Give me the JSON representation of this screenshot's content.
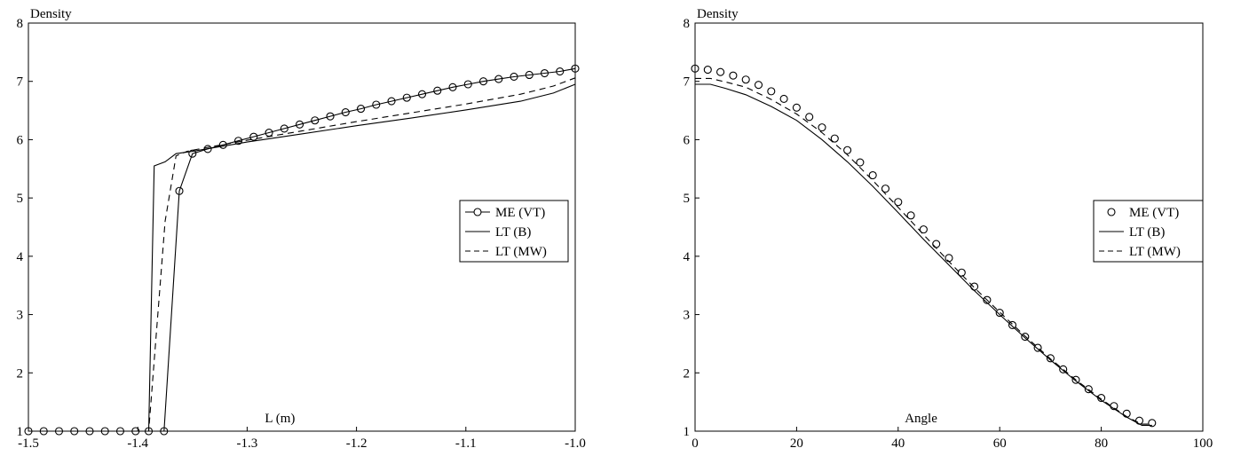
{
  "chart_data": [
    {
      "type": "line",
      "title": "",
      "xlabel": "L (m)",
      "ylabel": "Density",
      "xlim": [
        -1.5,
        -1.0
      ],
      "ylim": [
        1,
        8
      ],
      "xticks": [
        -1.5,
        -1.4,
        -1.3,
        -1.2,
        -1.1,
        -1.0
      ],
      "xtick_labels": [
        "-1.5",
        "-1.4",
        "-1.3",
        "-1.2",
        "-1.1",
        "-1.0"
      ],
      "yticks": [
        1,
        2,
        3,
        4,
        5,
        6,
        7,
        8
      ],
      "ytick_labels": [
        "1",
        "2",
        "3",
        "4",
        "5",
        "6",
        "7",
        "8"
      ],
      "legend_position": "right",
      "series": [
        {
          "name": "ME (VT)",
          "style": "solid-circles",
          "x": [
            -1.5,
            -1.486,
            -1.472,
            -1.458,
            -1.444,
            -1.43,
            -1.416,
            -1.402,
            -1.39,
            -1.376,
            -1.362,
            -1.35,
            -1.336,
            -1.322,
            -1.308,
            -1.294,
            -1.28,
            -1.266,
            -1.252,
            -1.238,
            -1.224,
            -1.21,
            -1.196,
            -1.182,
            -1.168,
            -1.154,
            -1.14,
            -1.126,
            -1.112,
            -1.098,
            -1.084,
            -1.07,
            -1.056,
            -1.042,
            -1.028,
            -1.014,
            -1.0
          ],
          "y": [
            1.0,
            1.0,
            1.0,
            1.0,
            1.0,
            1.0,
            1.0,
            1.0,
            1.0,
            1.0,
            5.12,
            5.76,
            5.84,
            5.91,
            5.98,
            6.05,
            6.12,
            6.19,
            6.26,
            6.33,
            6.4,
            6.47,
            6.53,
            6.6,
            6.66,
            6.72,
            6.78,
            6.84,
            6.9,
            6.95,
            7.0,
            7.04,
            7.08,
            7.11,
            7.14,
            7.17,
            7.22
          ]
        },
        {
          "name": "LT (B)",
          "style": "solid",
          "x": [
            -1.5,
            -1.39,
            -1.385,
            -1.375,
            -1.365,
            -1.35,
            -1.3,
            -1.25,
            -1.2,
            -1.15,
            -1.1,
            -1.05,
            -1.02,
            -1.0
          ],
          "y": [
            1.0,
            1.0,
            5.55,
            5.62,
            5.76,
            5.8,
            5.96,
            6.1,
            6.24,
            6.37,
            6.51,
            6.66,
            6.8,
            6.95
          ]
        },
        {
          "name": "LT (MW)",
          "style": "dashed",
          "x": [
            -1.5,
            -1.39,
            -1.375,
            -1.365,
            -1.355,
            -1.35,
            -1.3,
            -1.25,
            -1.2,
            -1.15,
            -1.1,
            -1.05,
            -1.02,
            -1.0
          ],
          "y": [
            1.0,
            1.0,
            4.6,
            5.72,
            5.8,
            5.82,
            5.99,
            6.15,
            6.31,
            6.46,
            6.61,
            6.78,
            6.92,
            7.06
          ]
        }
      ]
    },
    {
      "type": "line",
      "title": "",
      "xlabel": "Angle",
      "ylabel": "Density",
      "xlim": [
        0,
        100
      ],
      "ylim": [
        1,
        8
      ],
      "xticks": [
        0,
        20,
        40,
        60,
        80,
        100
      ],
      "xtick_labels": [
        "0",
        "20",
        "40",
        "60",
        "80",
        "100"
      ],
      "yticks": [
        1,
        2,
        3,
        4,
        5,
        6,
        7,
        8
      ],
      "ytick_labels": [
        "1",
        "2",
        "3",
        "4",
        "5",
        "6",
        "7",
        "8"
      ],
      "legend_position": "right",
      "series": [
        {
          "name": "ME (VT)",
          "style": "circles",
          "x": [
            0,
            2.5,
            5,
            7.5,
            10,
            12.5,
            15,
            17.5,
            20,
            22.5,
            25,
            27.5,
            30,
            32.5,
            35,
            37.5,
            40,
            42.5,
            45,
            47.5,
            50,
            52.5,
            55,
            57.5,
            60,
            62.5,
            65,
            67.5,
            70,
            72.5,
            75,
            77.5,
            80,
            82.5,
            85,
            87.5,
            90
          ],
          "y": [
            7.22,
            7.2,
            7.16,
            7.1,
            7.03,
            6.94,
            6.83,
            6.7,
            6.55,
            6.39,
            6.21,
            6.02,
            5.82,
            5.61,
            5.39,
            5.16,
            4.93,
            4.7,
            4.46,
            4.21,
            3.97,
            3.72,
            3.48,
            3.25,
            3.03,
            2.82,
            2.62,
            2.43,
            2.25,
            2.06,
            1.88,
            1.72,
            1.57,
            1.43,
            1.3,
            1.18,
            1.14
          ]
        },
        {
          "name": "LT (B)",
          "style": "solid",
          "x": [
            0,
            3,
            6,
            10,
            15,
            20,
            25,
            30,
            35,
            40,
            45,
            50,
            55,
            60,
            65,
            70,
            75,
            80,
            85,
            88,
            90
          ],
          "y": [
            6.95,
            6.95,
            6.88,
            6.77,
            6.57,
            6.33,
            6.0,
            5.62,
            5.2,
            4.75,
            4.29,
            3.85,
            3.41,
            3.0,
            2.6,
            2.22,
            1.86,
            1.53,
            1.24,
            1.1,
            1.1
          ]
        },
        {
          "name": "LT (MW)",
          "style": "dashed",
          "x": [
            0,
            3,
            6,
            10,
            15,
            20,
            25,
            30,
            35,
            40,
            45,
            50,
            55,
            60,
            65,
            70,
            75,
            80,
            85,
            88,
            90
          ],
          "y": [
            7.05,
            7.05,
            6.99,
            6.9,
            6.69,
            6.44,
            6.12,
            5.74,
            5.3,
            4.84,
            4.37,
            3.91,
            3.46,
            3.04,
            2.63,
            2.24,
            1.88,
            1.55,
            1.25,
            1.12,
            1.12
          ]
        }
      ]
    }
  ]
}
